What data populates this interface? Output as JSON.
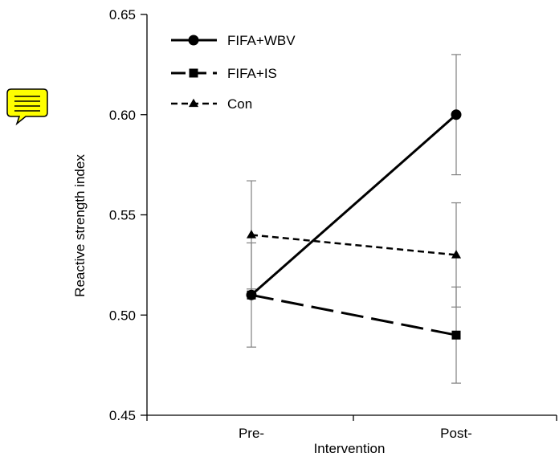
{
  "icons": {
    "comment": "comment-note-icon",
    "comment_color": "#ffff00"
  },
  "chart_data": {
    "type": "line",
    "title": "",
    "xlabel": "Intervention",
    "ylabel": "Reactive strength index",
    "categories": [
      "Pre-",
      "Post-"
    ],
    "ylim": [
      0.45,
      0.65
    ],
    "yticks": [
      0.45,
      0.5,
      0.55,
      0.6,
      0.65
    ],
    "ytick_labels": [
      "0.45",
      "0.50",
      "0.55",
      "0.60",
      "0.65"
    ],
    "legend_position": "top-left",
    "grid": false,
    "series": [
      {
        "name": "FIFA+WBV",
        "marker": "circle",
        "line_style": "solid",
        "values": [
          0.51,
          0.6
        ],
        "error": [
          0.0,
          0.03
        ]
      },
      {
        "name": "FIFA+IS",
        "marker": "square",
        "line_style": "long-dash",
        "values": [
          0.51,
          0.49
        ],
        "error": [
          0.0,
          0.024
        ]
      },
      {
        "name": "Con",
        "marker": "triangle",
        "line_style": "short-dash",
        "values": [
          0.54,
          0.53
        ],
        "error": [
          0.027,
          0.026
        ]
      }
    ],
    "shared_error_pre": {
      "center": 0.51,
      "error": 0.026
    }
  }
}
